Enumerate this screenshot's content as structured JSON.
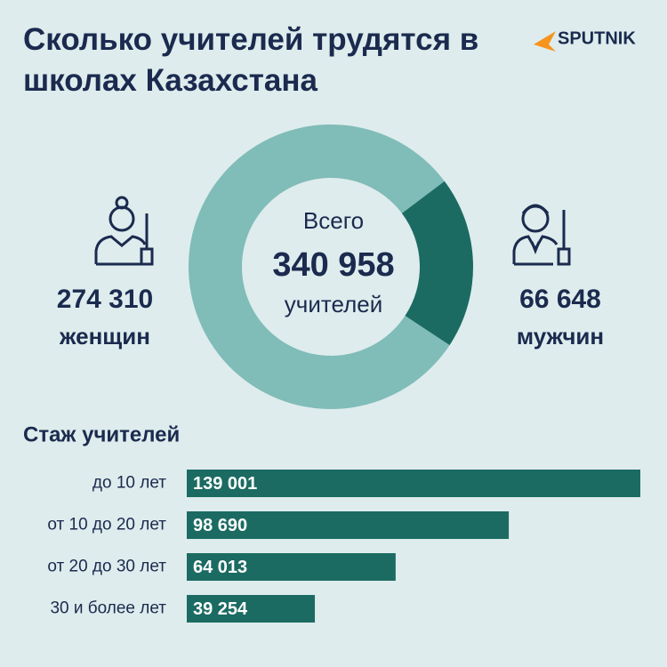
{
  "brand": "SPUTNIK",
  "chart_data": [
    {
      "type": "pie",
      "title": "Сколько учителей трудятся в школах Казахстана",
      "donut": true,
      "center_text": [
        "Всего",
        "340 958",
        "учителей"
      ],
      "categories": [
        "женщин",
        "мужчин"
      ],
      "values": [
        274310,
        66648
      ],
      "value_labels": [
        "274 310",
        "66 648"
      ],
      "colors": [
        "#80bcb8",
        "#1b6b62"
      ]
    },
    {
      "type": "bar",
      "orientation": "horizontal",
      "title": "Стаж учителей",
      "categories": [
        "до 10 лет",
        "от 10 до 20 лет",
        "от 20 до 30 лет",
        "30 и более лет"
      ],
      "values": [
        139001,
        98690,
        64013,
        39254
      ],
      "value_labels": [
        "139 001",
        "98 690",
        "64 013",
        "39 254"
      ],
      "color": "#1b6b62"
    }
  ]
}
